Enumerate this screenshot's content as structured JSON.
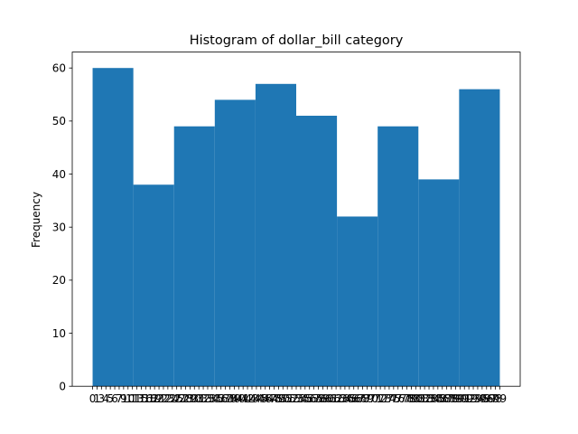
{
  "chart_data": {
    "type": "bar",
    "title": "Histogram of dollar_bill category",
    "xlabel": "",
    "ylabel": "Frequency",
    "ylim": [
      0,
      63
    ],
    "yticks": [
      0,
      10,
      20,
      30,
      40,
      50,
      60
    ],
    "grid": false,
    "bar_color": "#1f77b4",
    "bins": [
      {
        "range": [
          0,
          10
        ],
        "value": 60
      },
      {
        "range": [
          10,
          20
        ],
        "value": 38
      },
      {
        "range": [
          20,
          30
        ],
        "value": 49
      },
      {
        "range": [
          30,
          40
        ],
        "value": 54
      },
      {
        "range": [
          40,
          50
        ],
        "value": 57
      },
      {
        "range": [
          50,
          60
        ],
        "value": 51
      },
      {
        "range": [
          60,
          70
        ],
        "value": 32
      },
      {
        "range": [
          70,
          80
        ],
        "value": 49
      },
      {
        "range": [
          80,
          90
        ],
        "value": 39
      },
      {
        "range": [
          90,
          100
        ],
        "value": 56
      }
    ],
    "xticklabels": [
      "0",
      "1",
      "3",
      "4",
      "5",
      "6",
      "7",
      "9",
      "10",
      "11",
      "13",
      "15",
      "16",
      "18",
      "19",
      "21",
      "22",
      "23",
      "24",
      "25",
      "27",
      "28",
      "29",
      "30",
      "31",
      "32",
      "33",
      "34",
      "35",
      "36",
      "37",
      "38",
      "39",
      "40",
      "41",
      "42",
      "43",
      "44",
      "45",
      "46",
      "47",
      "48",
      "49",
      "50",
      "51",
      "52",
      "53",
      "54",
      "55",
      "56",
      "57",
      "58",
      "59",
      "60",
      "61",
      "62",
      "63",
      "64",
      "65",
      "66",
      "67",
      "68",
      "69",
      "70",
      "71",
      "72",
      "73",
      "74",
      "75",
      "76",
      "77",
      "78",
      "79",
      "80",
      "81",
      "82",
      "83",
      "84",
      "85",
      "86",
      "87",
      "88",
      "89",
      "90",
      "91",
      "92",
      "93",
      "94",
      "95",
      "96",
      "97",
      "98",
      "99"
    ]
  }
}
